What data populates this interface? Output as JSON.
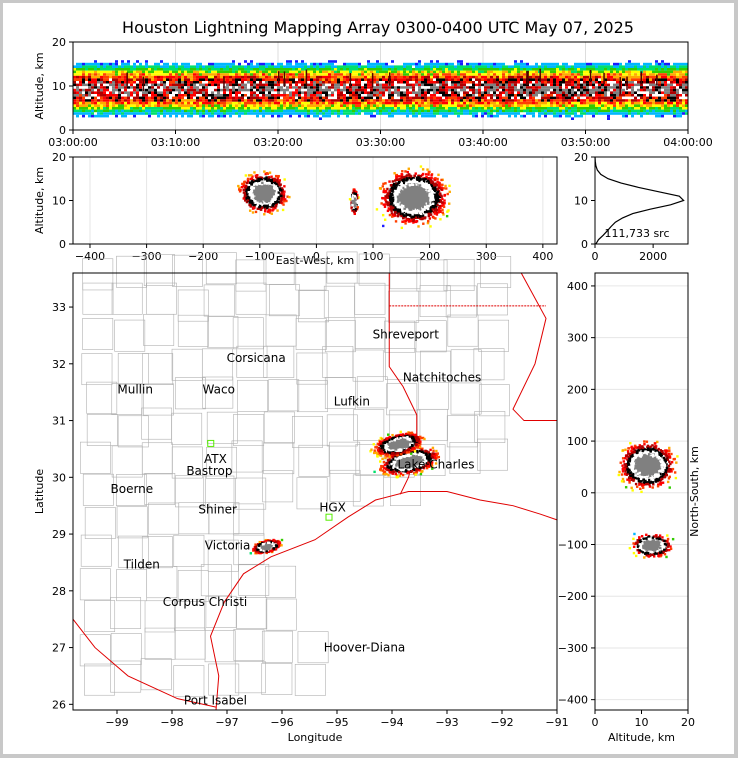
{
  "title": "Houston Lightning Mapping Array 0300-0400 UTC May 07, 2025",
  "chart_data": [
    {
      "panel": "altitude-time",
      "type": "heatmap",
      "ylabel": "Altitude, km",
      "xlabel": "",
      "ylim": [
        0,
        20
      ],
      "yticks": [
        "0",
        "10",
        "20"
      ],
      "xticks": [
        "03:00:00",
        "03:10:00",
        "03:20:00",
        "03:30:00",
        "03:40:00",
        "03:50:00",
        "04:00:00"
      ],
      "x_range_minutes": [
        0,
        60
      ],
      "density_core_altitude_km": [
        6,
        12
      ],
      "activity_extent_altitude_km": [
        1,
        20
      ]
    },
    {
      "panel": "altitude-east-west",
      "type": "heatmap",
      "xlabel": "East-West, km",
      "ylabel": "Altitude, km",
      "xlim": [
        -430,
        425
      ],
      "ylim": [
        0,
        20
      ],
      "xticks": [
        "−400",
        "−300",
        "−200",
        "−100",
        "0",
        "100",
        "200",
        "300",
        "400"
      ],
      "yticks": [
        "0",
        "10",
        "20"
      ],
      "clusters": [
        {
          "x_km": [
            -120,
            10
          ],
          "alt_km": [
            3,
            17
          ],
          "peak_x_km": -95,
          "peak_alt_km": 12
        },
        {
          "x_km": [
            55,
            75
          ],
          "alt_km": [
            5,
            14
          ],
          "peak_x_km": 65,
          "peak_alt_km": 10
        },
        {
          "x_km": [
            105,
            285
          ],
          "alt_km": [
            1,
            20
          ],
          "peak_x_km": 170,
          "peak_alt_km": 11
        }
      ]
    },
    {
      "panel": "altitude-histogram",
      "type": "line",
      "annotation": "111,733 src",
      "xlim": [
        0,
        3200
      ],
      "xticks": [
        "0",
        "2000"
      ],
      "ylim": [
        0,
        20
      ],
      "yticks": [
        "0",
        "10",
        "20"
      ],
      "altitude_km": [
        0,
        1,
        2,
        3,
        4,
        5,
        6,
        7,
        8,
        9,
        10,
        11,
        12,
        13,
        14,
        15,
        16,
        17,
        18,
        19,
        20
      ],
      "counts": [
        30,
        120,
        280,
        420,
        550,
        700,
        950,
        1300,
        1900,
        2600,
        3050,
        2900,
        2200,
        1500,
        900,
        450,
        200,
        80,
        30,
        10,
        0
      ]
    },
    {
      "panel": "plan-view-map",
      "type": "scatter",
      "xlabel": "Longitude",
      "ylabel": "Latitude",
      "xlim": [
        -99.8,
        -91
      ],
      "ylim": [
        25.9,
        33.6
      ],
      "xticks": [
        "−99",
        "−98",
        "−97",
        "−96",
        "−95",
        "−94",
        "−93",
        "−92",
        "−91"
      ],
      "yticks": [
        "26",
        "27",
        "28",
        "29",
        "30",
        "31",
        "32",
        "33"
      ],
      "clusters": [
        {
          "lon": -93.7,
          "lat": 30.3,
          "spread_lon": 0.6,
          "spread_lat": 0.3
        },
        {
          "lon": -93.9,
          "lat": 30.6,
          "spread_lon": 0.5,
          "spread_lat": 0.25
        },
        {
          "lon": -96.3,
          "lat": 28.8,
          "spread_lon": 0.3,
          "spread_lat": 0.15
        }
      ]
    },
    {
      "panel": "north-south-altitude",
      "type": "heatmap",
      "xlabel": "Altitude, km",
      "ylabel": "North-South, km",
      "xlim": [
        0,
        20
      ],
      "ylim": [
        -420,
        425
      ],
      "xticks": [
        "0",
        "10",
        "20"
      ],
      "yticks": [
        "−400",
        "−300",
        "−200",
        "−100",
        "0",
        "100",
        "200",
        "300",
        "400"
      ],
      "clusters": [
        {
          "alt_km": [
            2,
            20
          ],
          "ns_km": [
            -10,
            130
          ],
          "peak_alt_km": 11,
          "peak_ns_km": 55
        },
        {
          "alt_km": [
            5,
            18
          ],
          "ns_km": [
            -130,
            -60
          ],
          "peak_alt_km": 12,
          "peak_ns_km": -100
        }
      ]
    }
  ],
  "map": {
    "cities": [
      {
        "name": "Shreveport",
        "lon": -93.75,
        "lat": 32.52,
        "color": "#000000"
      },
      {
        "name": "Corsicana",
        "lon": -96.47,
        "lat": 32.1,
        "color": "#000000"
      },
      {
        "name": "Mullin",
        "lon": -98.67,
        "lat": 31.55,
        "color": "#e87722"
      },
      {
        "name": "Waco",
        "lon": -97.15,
        "lat": 31.55,
        "color": "#000000"
      },
      {
        "name": "Natchitoches",
        "lon": -93.09,
        "lat": 31.76,
        "color": "#000000"
      },
      {
        "name": "Lufkin",
        "lon": -94.73,
        "lat": 31.34,
        "color": "#000000"
      },
      {
        "name": "HGX",
        "lon": -95.08,
        "lat": 29.47,
        "color": "#000000"
      },
      {
        "name": "ATX",
        "lon": -97.21,
        "lat": 30.32,
        "color": "#e87722"
      },
      {
        "name": "Bastrop",
        "lon": -97.32,
        "lat": 30.11,
        "color": "#000000"
      },
      {
        "name": "Lake Charles",
        "lon": -93.2,
        "lat": 30.23,
        "color": "#000000"
      },
      {
        "name": "Boerne",
        "lon": -98.73,
        "lat": 29.79,
        "color": "#000000"
      },
      {
        "name": "Shiner",
        "lon": -97.17,
        "lat": 29.43,
        "color": "#000000"
      },
      {
        "name": "Victoria",
        "lon": -96.99,
        "lat": 28.8,
        "color": "#000000"
      },
      {
        "name": "Tilden",
        "lon": -98.55,
        "lat": 28.46,
        "color": "#000000"
      },
      {
        "name": "Corpus Christi",
        "lon": -97.4,
        "lat": 27.8,
        "color": "#000000"
      },
      {
        "name": "Hoover-Diana",
        "lon": -94.5,
        "lat": 27.0,
        "color": "#1a1aff"
      },
      {
        "name": "Port Isabel",
        "lon": -97.21,
        "lat": 26.07,
        "color": "#000000"
      }
    ]
  },
  "colors": {
    "heatmap_ramp": [
      "#6600cc",
      "#1a1aff",
      "#00b7ff",
      "#00e06b",
      "#33cc00",
      "#ffff00",
      "#ffaa00",
      "#ff4000",
      "#ff0000",
      "#b00000",
      "#000000",
      "#ffffff",
      "#808080"
    ],
    "coast": "#e00000",
    "border": "#b0b0b0",
    "hgx_box": "#55ee00"
  }
}
